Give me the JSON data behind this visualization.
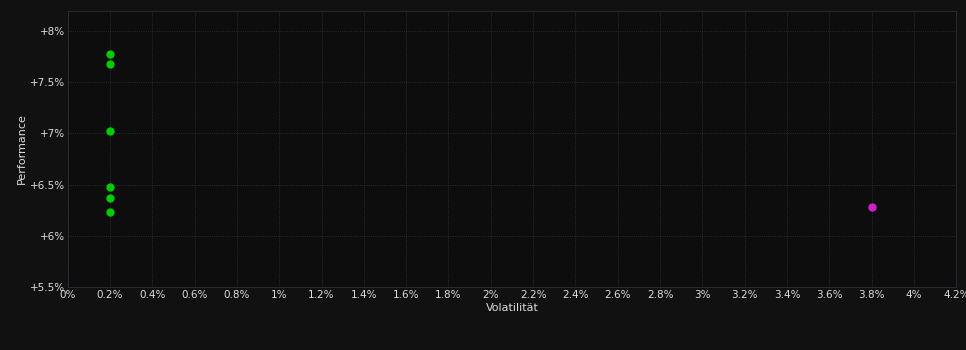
{
  "background_color": "#111111",
  "plot_bg_color": "#0d0d0d",
  "grid_color": "#333344",
  "xlabel": "Volatilität",
  "ylabel": "Performance",
  "xlim": [
    0.0,
    0.042
  ],
  "ylim": [
    0.055,
    0.082
  ],
  "ytick_vals": [
    0.055,
    0.06,
    0.065,
    0.07,
    0.075,
    0.08
  ],
  "ytick_labels": [
    "+5.5%",
    "+6%",
    "+6.5%",
    "+7%",
    "+7.5%",
    "+8%"
  ],
  "xtick_vals": [
    0.0,
    0.002,
    0.004,
    0.006,
    0.008,
    0.01,
    0.012,
    0.014,
    0.016,
    0.018,
    0.02,
    0.022,
    0.024,
    0.026,
    0.028,
    0.03,
    0.032,
    0.034,
    0.036,
    0.038,
    0.04,
    0.042
  ],
  "xtick_labels": [
    "0%",
    "0.2%",
    "0.4%",
    "0.6%",
    "0.8%",
    "1%",
    "1.2%",
    "1.4%",
    "1.6%",
    "1.8%",
    "2%",
    "2.2%",
    "2.4%",
    "2.6%",
    "2.8%",
    "3%",
    "3.2%",
    "3.4%",
    "3.6%",
    "3.8%",
    "4%",
    "4.2%"
  ],
  "green_points": [
    [
      0.002,
      0.0778
    ],
    [
      0.002,
      0.0768
    ],
    [
      0.002,
      0.0702
    ],
    [
      0.002,
      0.0648
    ],
    [
      0.002,
      0.0637
    ],
    [
      0.002,
      0.0623
    ]
  ],
  "magenta_points": [
    [
      0.038,
      0.0628
    ]
  ],
  "green_color": "#00cc00",
  "magenta_color": "#cc22cc",
  "text_color": "#dddddd",
  "marker_size": 5,
  "label_fontsize": 8,
  "tick_fontsize": 7.5
}
